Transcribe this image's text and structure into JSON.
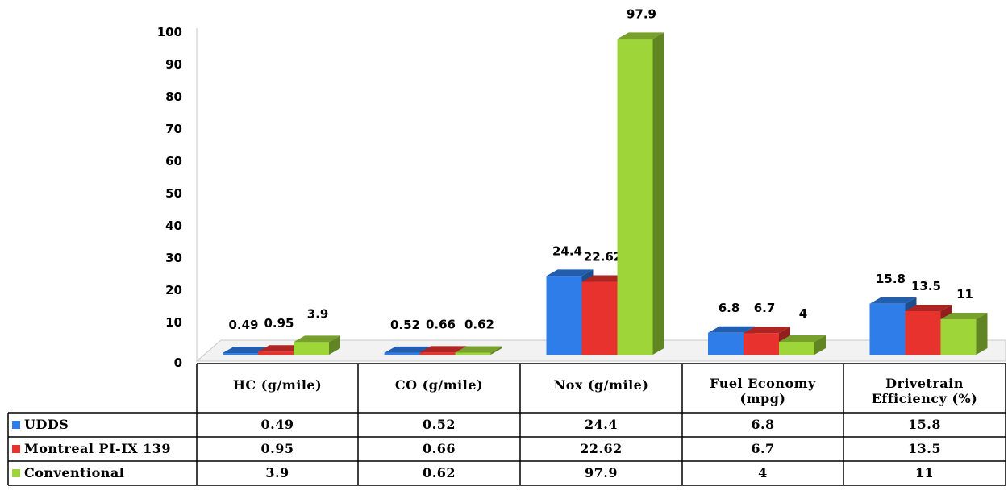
{
  "chart_data": {
    "type": "bar",
    "categories": [
      "HC (g/mile)",
      "CO (g/mile)",
      "Nox (g/mile)",
      "Fuel Economy (mpg)",
      "Drivetrain Efficiency (%)"
    ],
    "category_lines": [
      [
        "HC (g/mile)"
      ],
      [
        "CO (g/mile)"
      ],
      [
        "Nox (g/mile)"
      ],
      [
        "Fuel Economy",
        "(mpg)"
      ],
      [
        "Drivetrain",
        "Efficiency (%)"
      ]
    ],
    "series": [
      {
        "name": "UDDS",
        "color": "#2e7de8",
        "values": [
          0.49,
          0.52,
          24.4,
          6.8,
          15.8
        ],
        "labels": [
          "0.49",
          "0.52",
          "24.4",
          "6.8",
          "15.8"
        ]
      },
      {
        "name": "Montreal PI-IX 139",
        "color": "#e8322e",
        "values": [
          0.95,
          0.66,
          22.62,
          6.7,
          13.5
        ],
        "labels": [
          "0.95",
          "0.66",
          "22.62",
          "6.7",
          "13.5"
        ]
      },
      {
        "name": "Conventional",
        "color": "#9ed63a",
        "values": [
          3.9,
          0.62,
          97.9,
          4,
          11
        ],
        "labels": [
          "3.9",
          "0.62",
          "97.9",
          "4",
          "11"
        ]
      }
    ],
    "ylim": [
      0,
      100
    ],
    "yticks": [
      "0",
      "10",
      "20",
      "30",
      "40",
      "50",
      "60",
      "70",
      "80",
      "90",
      "100"
    ],
    "grid": false,
    "legend": "data-table",
    "style": "3d-clustered-column"
  }
}
